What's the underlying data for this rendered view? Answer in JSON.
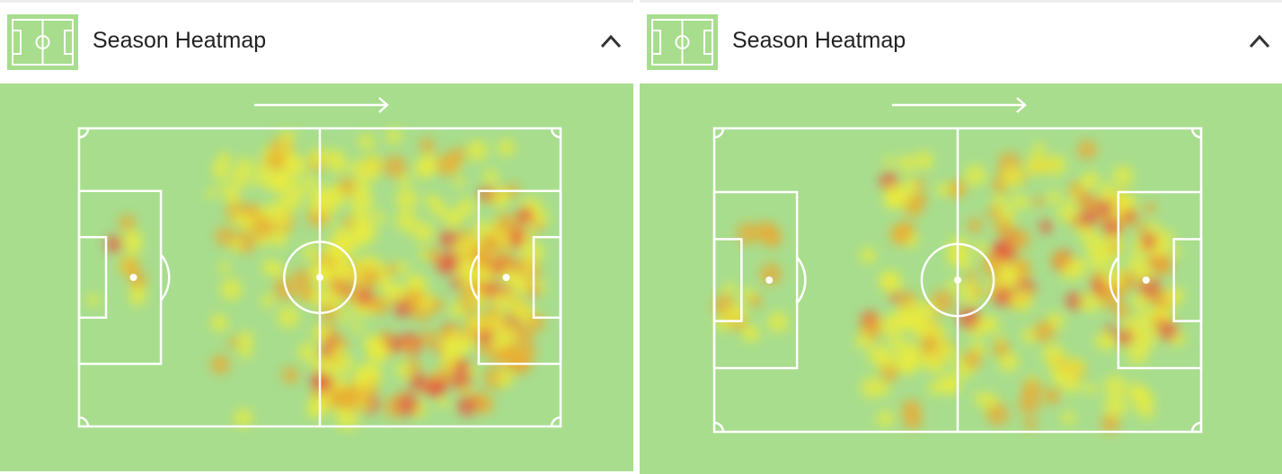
{
  "panels": [
    {
      "title": "Season Heatmap"
    },
    {
      "title": "Season Heatmap"
    }
  ]
}
